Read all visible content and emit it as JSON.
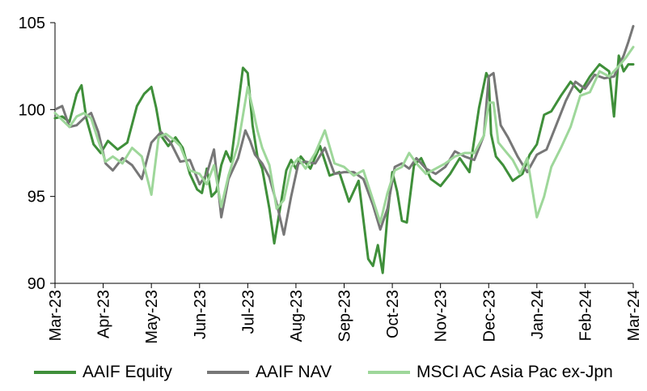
{
  "chart_data": {
    "type": "line",
    "title": "",
    "xlabel": "",
    "ylabel": "",
    "ylim": [
      90,
      105
    ],
    "y_ticks": [
      90,
      95,
      100,
      105
    ],
    "x_tick_labels": [
      "Mar-23",
      "Apr-23",
      "May-23",
      "Jun-23",
      "Jul-23",
      "Aug-23",
      "Sep-23",
      "Oct-23",
      "Nov-23",
      "Dec-23",
      "Jan-24",
      "Feb-24",
      "Mar-24"
    ],
    "x_month_index": [
      0,
      1,
      2,
      3,
      4,
      5,
      6,
      7,
      8,
      9,
      10,
      11,
      12
    ],
    "grid": false,
    "legend_position": "bottom",
    "series": [
      {
        "name": "AAIF Equity",
        "color": "#3f8f3a",
        "x": [
          0,
          0.15,
          0.3,
          0.45,
          0.55,
          0.65,
          0.8,
          0.95,
          1.1,
          1.3,
          1.5,
          1.7,
          1.85,
          2,
          2.1,
          2.2,
          2.35,
          2.5,
          2.65,
          2.8,
          2.95,
          3.05,
          3.15,
          3.25,
          3.35,
          3.45,
          3.55,
          3.65,
          3.8,
          3.9,
          4,
          4.1,
          4.2,
          4.3,
          4.45,
          4.55,
          4.7,
          4.8,
          4.9,
          5,
          5.1,
          5.3,
          5.5,
          5.7,
          5.9,
          6.1,
          6.3,
          6.5,
          6.6,
          6.7,
          6.8,
          6.9,
          7,
          7.1,
          7.2,
          7.3,
          7.45,
          7.6,
          7.8,
          8,
          8.2,
          8.4,
          8.6,
          8.8,
          8.95,
          9,
          9.05,
          9.15,
          9.3,
          9.5,
          9.7,
          9.85,
          10,
          10.15,
          10.3,
          10.5,
          10.7,
          10.9,
          11.1,
          11.3,
          11.5,
          11.6,
          11.7,
          11.8,
          11.9,
          12
        ],
        "values": [
          99.5,
          99.6,
          99.3,
          100.9,
          101.4,
          99.5,
          98.0,
          97.5,
          98.2,
          97.7,
          98.1,
          100.2,
          100.9,
          101.3,
          100.1,
          98.5,
          97.9,
          98.4,
          97.8,
          96.3,
          95.4,
          95.2,
          96.6,
          95.0,
          95.3,
          96.8,
          97.6,
          97.0,
          100.2,
          102.4,
          102.1,
          99.1,
          97.3,
          96.6,
          94.3,
          92.3,
          94.8,
          96.5,
          97.1,
          96.6,
          97.3,
          96.6,
          97.9,
          96.2,
          96.4,
          94.7,
          95.9,
          91.4,
          91.0,
          92.2,
          90.6,
          93.9,
          96.4,
          95.3,
          93.6,
          93.5,
          96.8,
          97.2,
          96.0,
          95.6,
          96.3,
          97.2,
          96.4,
          100.1,
          102.1,
          101.8,
          98.6,
          97.3,
          96.8,
          95.9,
          96.3,
          97.4,
          98.0,
          99.7,
          99.9,
          100.8,
          101.6,
          101.0,
          101.9,
          102.6,
          102.2,
          99.6,
          103.1,
          102.2,
          102.6,
          102.6
        ]
      },
      {
        "name": "AAIF NAV",
        "color": "#777777",
        "x": [
          0,
          0.15,
          0.3,
          0.45,
          0.6,
          0.75,
          0.9,
          1.05,
          1.2,
          1.4,
          1.6,
          1.8,
          2,
          2.2,
          2.4,
          2.6,
          2.8,
          3,
          3.15,
          3.3,
          3.45,
          3.6,
          3.8,
          3.95,
          4.05,
          4.15,
          4.3,
          4.45,
          4.6,
          4.75,
          4.9,
          5.05,
          5.2,
          5.4,
          5.6,
          5.8,
          6,
          6.2,
          6.4,
          6.6,
          6.75,
          6.9,
          7.05,
          7.2,
          7.35,
          7.5,
          7.7,
          7.9,
          8.1,
          8.3,
          8.5,
          8.7,
          8.9,
          9,
          9.1,
          9.25,
          9.4,
          9.6,
          9.8,
          10,
          10.2,
          10.4,
          10.6,
          10.8,
          11,
          11.2,
          11.4,
          11.6,
          11.8,
          11.9,
          12
        ],
        "values": [
          100.0,
          100.2,
          99.0,
          99.1,
          99.5,
          99.8,
          98.7,
          96.9,
          96.5,
          97.2,
          96.8,
          96.0,
          98.1,
          98.7,
          98.1,
          97.0,
          97.1,
          95.7,
          96.3,
          97.7,
          93.8,
          96.0,
          97.2,
          98.8,
          98.2,
          97.4,
          96.9,
          96.1,
          94.6,
          92.8,
          95.0,
          96.9,
          97.0,
          96.9,
          97.8,
          96.3,
          96.4,
          96.4,
          96.0,
          94.5,
          93.1,
          94.3,
          96.7,
          96.9,
          96.6,
          97.2,
          96.6,
          96.3,
          96.7,
          97.6,
          97.3,
          97.1,
          98.5,
          101.9,
          102.1,
          99.1,
          98.4,
          97.3,
          96.4,
          97.4,
          97.7,
          99.1,
          100.5,
          101.6,
          101.2,
          102.0,
          101.8,
          101.9,
          103.1,
          103.9,
          104.8
        ]
      },
      {
        "name": "MSCI AC Asia Pac ex-Jpn",
        "color": "#9ed79a",
        "x": [
          0,
          0.15,
          0.3,
          0.45,
          0.6,
          0.75,
          0.9,
          1.05,
          1.2,
          1.4,
          1.6,
          1.8,
          2,
          2.15,
          2.3,
          2.45,
          2.6,
          2.8,
          3,
          3.15,
          3.3,
          3.45,
          3.6,
          3.8,
          4,
          4.1,
          4.2,
          4.3,
          4.45,
          4.6,
          4.75,
          4.9,
          5.05,
          5.2,
          5.4,
          5.6,
          5.8,
          6,
          6.2,
          6.4,
          6.6,
          6.75,
          6.9,
          7.05,
          7.2,
          7.35,
          7.5,
          7.7,
          7.9,
          8.1,
          8.3,
          8.5,
          8.7,
          8.9,
          9,
          9.1,
          9.2,
          9.35,
          9.5,
          9.65,
          9.8,
          10,
          10.15,
          10.3,
          10.5,
          10.7,
          10.9,
          11.1,
          11.3,
          11.5,
          11.7,
          11.85,
          12
        ],
        "values": [
          99.8,
          99.4,
          99.0,
          99.6,
          99.8,
          99.5,
          98.2,
          97.0,
          97.3,
          96.9,
          97.8,
          97.3,
          95.1,
          98.4,
          98.6,
          98.3,
          97.9,
          96.5,
          96.3,
          95.7,
          96.8,
          94.4,
          96.2,
          98.0,
          101.3,
          100.1,
          98.8,
          97.8,
          96.8,
          94.3,
          94.8,
          96.7,
          97.2,
          96.6,
          97.5,
          98.8,
          96.9,
          96.7,
          96.2,
          96.5,
          94.8,
          93.5,
          95.2,
          96.5,
          96.7,
          97.5,
          96.9,
          96.3,
          96.6,
          96.9,
          97.3,
          97.5,
          97.5,
          98.5,
          100.4,
          100.4,
          98.1,
          97.6,
          97.1,
          96.3,
          97.2,
          93.8,
          95.0,
          96.7,
          97.8,
          99.0,
          100.8,
          101.0,
          102.2,
          101.9,
          102.5,
          103.0,
          103.6
        ]
      }
    ]
  }
}
